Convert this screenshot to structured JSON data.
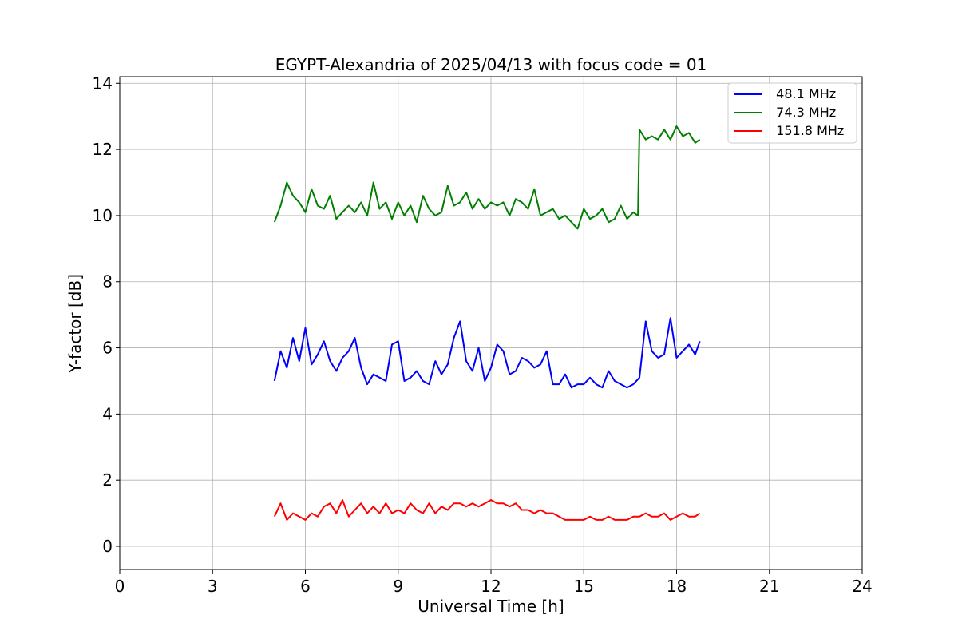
{
  "chart_data": {
    "type": "line",
    "title": "EGYPT-Alexandria of 2025/04/13 with focus code = 01",
    "xlabel": "Universal Time [h]",
    "ylabel": "Y-factor [dB]",
    "xlim": [
      0,
      24
    ],
    "ylim": [
      -0.7,
      14.2
    ],
    "xticks": [
      0,
      3,
      6,
      9,
      12,
      15,
      18,
      21,
      24
    ],
    "yticks": [
      0,
      2,
      4,
      6,
      8,
      10,
      12,
      14
    ],
    "grid": true,
    "legend_position": "top-right",
    "series": [
      {
        "name": "  48.1 MHz",
        "color": "#0000ff",
        "x": [
          5.0,
          5.2,
          5.4,
          5.6,
          5.8,
          6.0,
          6.2,
          6.4,
          6.6,
          6.8,
          7.0,
          7.2,
          7.4,
          7.6,
          7.8,
          8.0,
          8.2,
          8.4,
          8.6,
          8.8,
          9.0,
          9.2,
          9.4,
          9.6,
          9.8,
          10.0,
          10.2,
          10.4,
          10.6,
          10.8,
          11.0,
          11.2,
          11.4,
          11.6,
          11.8,
          12.0,
          12.2,
          12.4,
          12.6,
          12.8,
          13.0,
          13.2,
          13.4,
          13.6,
          13.8,
          14.0,
          14.2,
          14.4,
          14.6,
          14.8,
          15.0,
          15.2,
          15.4,
          15.6,
          15.8,
          16.0,
          16.2,
          16.4,
          16.6,
          16.8,
          17.0,
          17.2,
          17.4,
          17.6,
          17.8,
          18.0,
          18.2,
          18.4,
          18.6,
          18.75
        ],
        "y": [
          5.0,
          5.9,
          5.4,
          6.3,
          5.6,
          6.6,
          5.5,
          5.8,
          6.2,
          5.6,
          5.3,
          5.7,
          5.9,
          6.3,
          5.4,
          4.9,
          5.2,
          5.1,
          5.0,
          6.1,
          6.2,
          5.0,
          5.1,
          5.3,
          5.0,
          4.9,
          5.6,
          5.2,
          5.5,
          6.3,
          6.8,
          5.6,
          5.3,
          6.0,
          5.0,
          5.4,
          6.1,
          5.9,
          5.2,
          5.3,
          5.7,
          5.6,
          5.4,
          5.5,
          5.9,
          4.9,
          4.9,
          5.2,
          4.8,
          4.9,
          4.9,
          5.1,
          4.9,
          4.8,
          5.3,
          5.0,
          4.9,
          4.8,
          4.9,
          5.1,
          6.8,
          5.9,
          5.7,
          5.8,
          6.9,
          5.7,
          5.9,
          6.1,
          5.8,
          6.2
        ]
      },
      {
        "name": "  74.3 MHz",
        "color": "#008000",
        "x": [
          5.0,
          5.2,
          5.4,
          5.6,
          5.8,
          6.0,
          6.2,
          6.4,
          6.6,
          6.8,
          7.0,
          7.2,
          7.4,
          7.6,
          7.8,
          8.0,
          8.2,
          8.4,
          8.6,
          8.8,
          9.0,
          9.2,
          9.4,
          9.6,
          9.8,
          10.0,
          10.2,
          10.4,
          10.6,
          10.8,
          11.0,
          11.2,
          11.4,
          11.6,
          11.8,
          12.0,
          12.2,
          12.4,
          12.6,
          12.8,
          13.0,
          13.2,
          13.4,
          13.6,
          13.8,
          14.0,
          14.2,
          14.4,
          14.6,
          14.8,
          15.0,
          15.2,
          15.4,
          15.6,
          15.8,
          16.0,
          16.2,
          16.4,
          16.6,
          16.75,
          16.8,
          17.0,
          17.2,
          17.4,
          17.6,
          17.8,
          18.0,
          18.2,
          18.4,
          18.6,
          18.75
        ],
        "y": [
          9.8,
          10.3,
          11.0,
          10.6,
          10.4,
          10.1,
          10.8,
          10.3,
          10.2,
          10.6,
          9.9,
          10.1,
          10.3,
          10.1,
          10.4,
          10.0,
          11.0,
          10.2,
          10.4,
          9.9,
          10.4,
          10.0,
          10.3,
          9.8,
          10.6,
          10.2,
          10.0,
          10.1,
          10.9,
          10.3,
          10.4,
          10.7,
          10.2,
          10.5,
          10.2,
          10.4,
          10.3,
          10.4,
          10.0,
          10.5,
          10.4,
          10.2,
          10.8,
          10.0,
          10.1,
          10.2,
          9.9,
          10.0,
          9.8,
          9.6,
          10.2,
          9.9,
          10.0,
          10.2,
          9.8,
          9.9,
          10.3,
          9.9,
          10.1,
          10.0,
          12.6,
          12.3,
          12.4,
          12.3,
          12.6,
          12.3,
          12.7,
          12.4,
          12.5,
          12.2,
          12.3
        ]
      },
      {
        "name": "  151.8 MHz",
        "color": "#ff0000",
        "x": [
          5.0,
          5.2,
          5.4,
          5.6,
          5.8,
          6.0,
          6.2,
          6.4,
          6.6,
          6.8,
          7.0,
          7.2,
          7.4,
          7.6,
          7.8,
          8.0,
          8.2,
          8.4,
          8.6,
          8.8,
          9.0,
          9.2,
          9.4,
          9.6,
          9.8,
          10.0,
          10.2,
          10.4,
          10.6,
          10.8,
          11.0,
          11.2,
          11.4,
          11.6,
          11.8,
          12.0,
          12.2,
          12.4,
          12.6,
          12.8,
          13.0,
          13.2,
          13.4,
          13.6,
          13.8,
          14.0,
          14.2,
          14.4,
          14.6,
          14.8,
          15.0,
          15.2,
          15.4,
          15.6,
          15.8,
          16.0,
          16.2,
          16.4,
          16.6,
          16.8,
          17.0,
          17.2,
          17.4,
          17.6,
          17.8,
          18.0,
          18.2,
          18.4,
          18.6,
          18.75
        ],
        "y": [
          0.9,
          1.3,
          0.8,
          1.0,
          0.9,
          0.8,
          1.0,
          0.9,
          1.2,
          1.3,
          1.0,
          1.4,
          0.9,
          1.1,
          1.3,
          1.0,
          1.2,
          1.0,
          1.3,
          1.0,
          1.1,
          1.0,
          1.3,
          1.1,
          1.0,
          1.3,
          1.0,
          1.2,
          1.1,
          1.3,
          1.3,
          1.2,
          1.3,
          1.2,
          1.3,
          1.4,
          1.3,
          1.3,
          1.2,
          1.3,
          1.1,
          1.1,
          1.0,
          1.1,
          1.0,
          1.0,
          0.9,
          0.8,
          0.8,
          0.8,
          0.8,
          0.9,
          0.8,
          0.8,
          0.9,
          0.8,
          0.8,
          0.8,
          0.9,
          0.9,
          1.0,
          0.9,
          0.9,
          1.0,
          0.8,
          0.9,
          1.0,
          0.9,
          0.9,
          1.0
        ]
      }
    ]
  }
}
